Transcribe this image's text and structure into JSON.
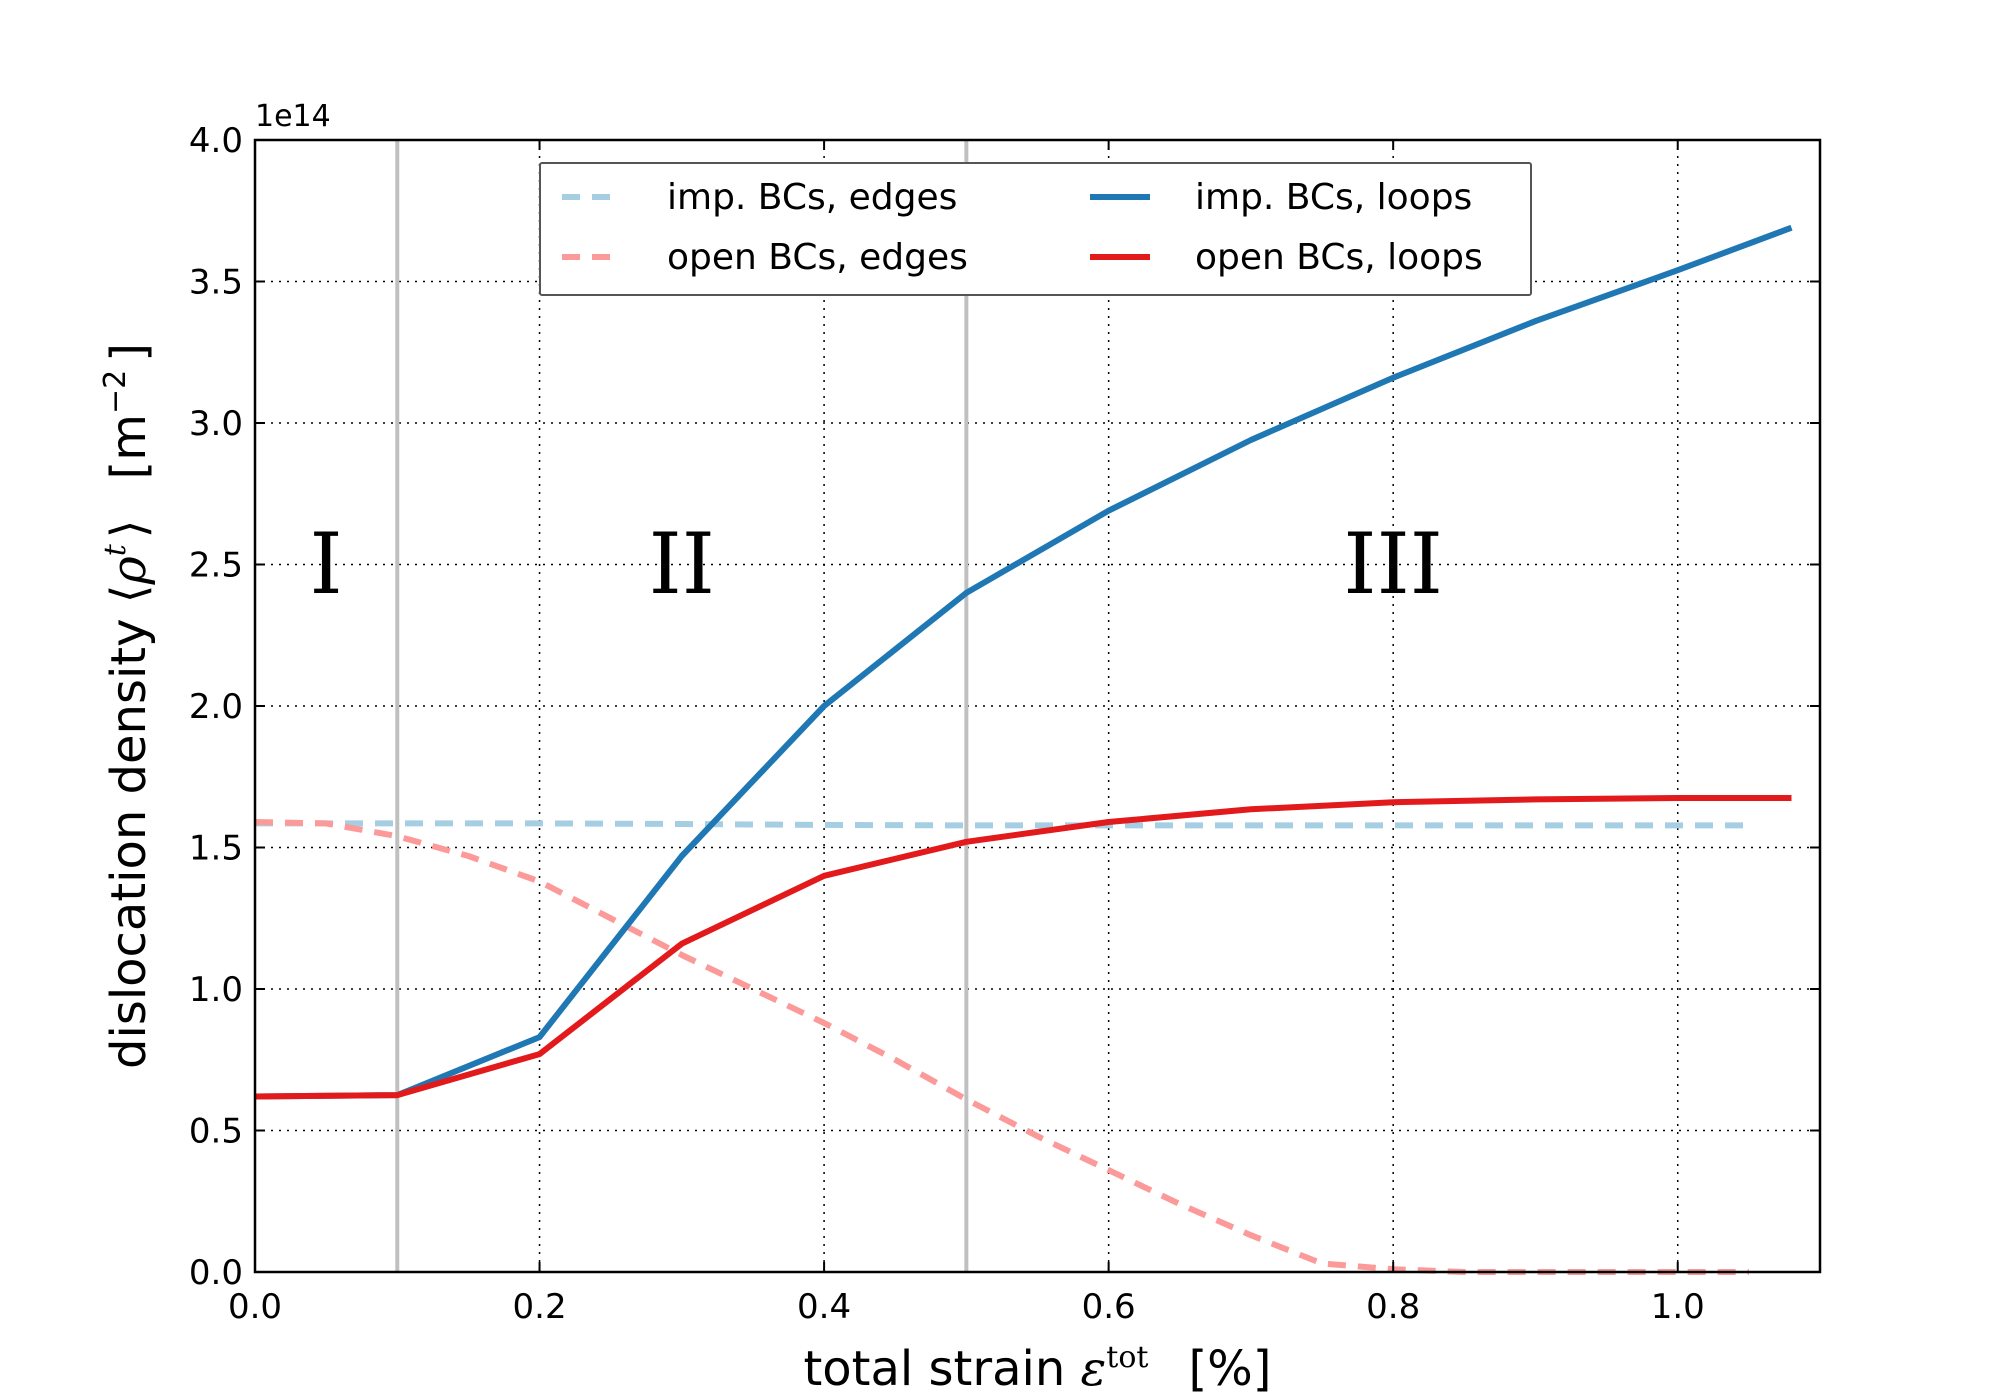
{
  "chart_data": {
    "type": "line",
    "title": "",
    "xlabel": {
      "prefix": "total strain ",
      "symbol": "ε",
      "superscript": "tot",
      "unit": "[%]"
    },
    "ylabel": {
      "prefix": "dislocation density ",
      "symbol_open": "⟨",
      "symbol": "ρ",
      "superscript": "t",
      "symbol_close": "⟩",
      "unit_open": "[m",
      "unit_superscript": "−2",
      "unit_close": "]"
    },
    "y_offset_label": "1e14",
    "xlim": [
      0.0,
      1.1
    ],
    "ylim": [
      0.0,
      4.0
    ],
    "x_ticks": [
      0.0,
      0.2,
      0.4,
      0.6,
      0.8,
      1.0
    ],
    "x_tick_labels": [
      "0.0",
      "0.2",
      "0.4",
      "0.6",
      "0.8",
      "1.0"
    ],
    "y_ticks": [
      0.0,
      0.5,
      1.0,
      1.5,
      2.0,
      2.5,
      3.0,
      3.5,
      4.0
    ],
    "y_tick_labels": [
      "0.0",
      "0.5",
      "1.0",
      "1.5",
      "2.0",
      "2.5",
      "3.0",
      "3.5",
      "4.0"
    ],
    "grid": true,
    "legend_position": "top-center",
    "vertical_lines": [
      0.1,
      0.5
    ],
    "regions": [
      {
        "label": "I",
        "x": 0.05,
        "y": 2.4
      },
      {
        "label": "II",
        "x": 0.3,
        "y": 2.4
      },
      {
        "label": "III",
        "x": 0.8,
        "y": 2.4
      }
    ],
    "series": [
      {
        "name": "imp. BCs, edges",
        "style": "dashed",
        "color": "#a6cee3",
        "x": [
          0.0,
          0.1,
          0.2,
          0.3,
          0.4,
          0.5,
          0.6,
          0.7,
          0.8,
          0.9,
          1.0,
          1.05
        ],
        "y": [
          1.585,
          1.585,
          1.585,
          1.583,
          1.58,
          1.578,
          1.578,
          1.578,
          1.578,
          1.578,
          1.578,
          1.578
        ]
      },
      {
        "name": "open BCs, edges",
        "style": "dashed",
        "color": "#fb9a99",
        "x": [
          0.0,
          0.05,
          0.1,
          0.15,
          0.2,
          0.25,
          0.3,
          0.35,
          0.4,
          0.45,
          0.5,
          0.55,
          0.6,
          0.65,
          0.7,
          0.75,
          0.8,
          0.85,
          0.9,
          1.0,
          1.05
        ],
        "y": [
          1.59,
          1.585,
          1.54,
          1.47,
          1.38,
          1.25,
          1.12,
          1.0,
          0.88,
          0.75,
          0.61,
          0.48,
          0.36,
          0.24,
          0.13,
          0.03,
          0.01,
          0.0,
          0.0,
          0.0,
          0.0
        ]
      },
      {
        "name": "imp. BCs, loops",
        "style": "solid",
        "color": "#1f78b4",
        "x": [
          0.0,
          0.1,
          0.2,
          0.3,
          0.4,
          0.5,
          0.6,
          0.7,
          0.8,
          0.9,
          1.0,
          1.08
        ],
        "y": [
          0.62,
          0.625,
          0.83,
          1.47,
          2.0,
          2.4,
          2.69,
          2.94,
          3.16,
          3.36,
          3.54,
          3.69
        ]
      },
      {
        "name": "open BCs, loops",
        "style": "solid",
        "color": "#e31a1c",
        "x": [
          0.0,
          0.1,
          0.2,
          0.3,
          0.4,
          0.5,
          0.6,
          0.7,
          0.8,
          0.9,
          1.0,
          1.08
        ],
        "y": [
          0.62,
          0.625,
          0.77,
          1.16,
          1.4,
          1.52,
          1.59,
          1.635,
          1.66,
          1.67,
          1.675,
          1.675
        ]
      }
    ]
  }
}
